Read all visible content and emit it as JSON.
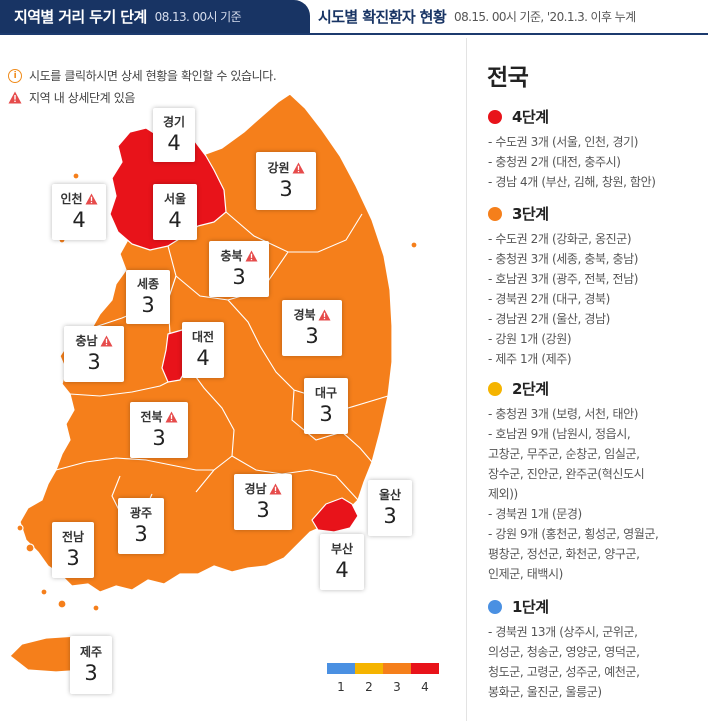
{
  "tabs": [
    {
      "label": "지역별 거리 두기 단계",
      "sub": "08.13. 00시 기준",
      "active": true
    },
    {
      "label": "시도별 확진환자 현황",
      "sub": "08.15. 00시 기준, '20.1.3. 이후 누계",
      "active": false
    }
  ],
  "notes": {
    "info": "시도를 클릭하시면 상세 현황을 확인할 수 있습니다.",
    "warn": "지역 내 상세단계 있음"
  },
  "colors": {
    "level1": "#4a90e2",
    "level2": "#f5b400",
    "level3": "#f57f1b",
    "level4": "#e8131a",
    "header": "#183464"
  },
  "regions": [
    {
      "name": "경기",
      "level": "4",
      "warn": false
    },
    {
      "name": "인천",
      "level": "4",
      "warn": true
    },
    {
      "name": "서울",
      "level": "4",
      "warn": false
    },
    {
      "name": "강원",
      "level": "3",
      "warn": true
    },
    {
      "name": "충북",
      "level": "3",
      "warn": true
    },
    {
      "name": "세종",
      "level": "3",
      "warn": false
    },
    {
      "name": "충남",
      "level": "3",
      "warn": true
    },
    {
      "name": "대전",
      "level": "4",
      "warn": false
    },
    {
      "name": "경북",
      "level": "3",
      "warn": true
    },
    {
      "name": "대구",
      "level": "3",
      "warn": false
    },
    {
      "name": "전북",
      "level": "3",
      "warn": true
    },
    {
      "name": "경남",
      "level": "3",
      "warn": true
    },
    {
      "name": "광주",
      "level": "3",
      "warn": false
    },
    {
      "name": "울산",
      "level": "3",
      "warn": false
    },
    {
      "name": "전남",
      "level": "3",
      "warn": false
    },
    {
      "name": "부산",
      "level": "4",
      "warn": false
    },
    {
      "name": "제주",
      "level": "3",
      "warn": false
    }
  ],
  "legend": [
    "1",
    "2",
    "3",
    "4"
  ],
  "panel": {
    "title": "전국",
    "levels": [
      {
        "name": "4단계",
        "color": "#e8131a",
        "items": [
          "- 수도권 3개 (서울, 인천, 경기)",
          "- 충청권 2개 (대전, 충주시)",
          "- 경남 4개 (부산, 김해, 창원, 함안)"
        ]
      },
      {
        "name": "3단계",
        "color": "#f57f1b",
        "items": [
          "- 수도권 2개 (강화군, 옹진군)",
          "- 충청권 3개 (세종, 충북, 충남)",
          "- 호남권 3개 (광주, 전북, 전남)",
          "- 경북권 2개 (대구, 경북)",
          "- 경남권 2개 (울산, 경남)",
          "- 강원 1개 (강원)",
          "- 제주 1개 (제주)"
        ]
      },
      {
        "name": "2단계",
        "color": "#f5b400",
        "items": [
          "- 충청권 3개 (보령, 서천, 태안)",
          "- 호남권 9개 (남원시, 정읍시,",
          "고창군, 무주군, 순창군, 임실군,",
          "장수군, 진안군, 완주군(혁신도시",
          "제외))",
          "- 경북권 1개 (문경)",
          "- 강원 9개 (홍천군, 횡성군, 영월군,",
          "평창군, 정선군, 화천군, 양구군,",
          "인제군, 태백시)"
        ]
      },
      {
        "name": "1단계",
        "color": "#4a90e2",
        "items": [
          "- 경북권 13개 (상주시, 군위군,",
          "의성군, 청송군, 영양군, 영덕군,",
          "청도군, 고령군, 성주군, 예천군,",
          "봉화군, 울진군, 울릉군)"
        ]
      }
    ]
  }
}
